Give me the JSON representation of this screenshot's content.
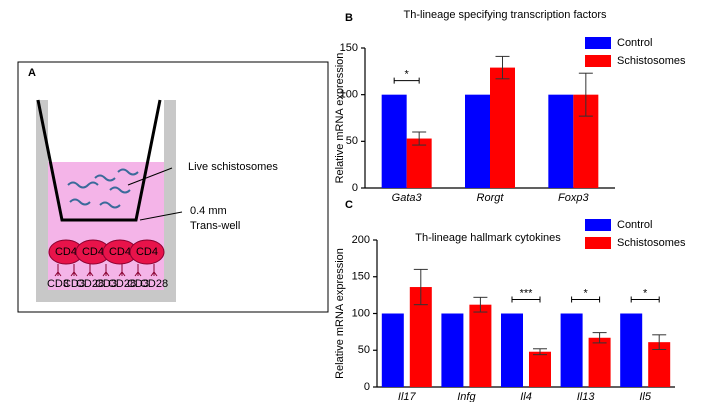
{
  "panel_a": {
    "label": "A",
    "annotations": [
      "Live schistosomes",
      "0.4 mm",
      "Trans-well"
    ],
    "cells": [
      "CD4",
      "CD4",
      "CD4",
      "CD4"
    ],
    "receptors": [
      "CD3",
      "CD3",
      "CD28",
      "CD3",
      "CD28",
      "CD3",
      "CD28"
    ]
  },
  "chart_data": [
    {
      "type": "bar",
      "panel_label": "B",
      "title": "Th-lineage specifying transcription factors",
      "y_label": "Relative mRNA expression",
      "categories": [
        "Gata3",
        "Rorgt",
        "Foxp3"
      ],
      "series": [
        {
          "name": "Control",
          "color": "#0000ff",
          "values": [
            100,
            100,
            100
          ]
        },
        {
          "name": "Schistosomes",
          "color": "#ff0000",
          "values": [
            53,
            129,
            100
          ],
          "errors": [
            7,
            12,
            23
          ]
        }
      ],
      "ylim": [
        0,
        150
      ],
      "yticks": [
        0,
        50,
        100,
        150
      ],
      "annotations": [
        {
          "text": "*",
          "category": "Gata3"
        }
      ]
    },
    {
      "type": "bar",
      "panel_label": "C",
      "title": "Th-lineage hallmark cytokines",
      "y_label": "Relative mRNA expression",
      "categories": [
        "Il17",
        "Infg",
        "Il4",
        "Il13",
        "Il5"
      ],
      "series": [
        {
          "name": "Control",
          "color": "#0000ff",
          "values": [
            100,
            100,
            100,
            100,
            100
          ]
        },
        {
          "name": "Schistosomes",
          "color": "#ff0000",
          "values": [
            136,
            112,
            48,
            67,
            61
          ],
          "errors": [
            24,
            10,
            4,
            7,
            10
          ]
        }
      ],
      "ylim": [
        0,
        200
      ],
      "yticks": [
        0,
        50,
        100,
        150,
        200
      ],
      "annotations": [
        {
          "text": "***",
          "category": "Il4"
        },
        {
          "text": "*",
          "category": "Il13"
        },
        {
          "text": "*",
          "category": "Il5"
        }
      ]
    }
  ]
}
